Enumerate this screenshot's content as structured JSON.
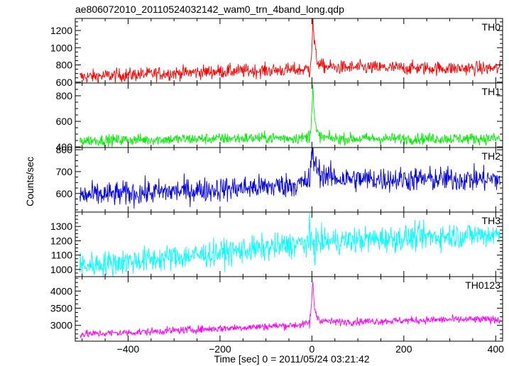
{
  "chart_data": {
    "type": "line",
    "title": "ae806072010_20110524032142_wam0_trn_4band_long.qdp",
    "xlabel": "Time [sec] 0 = 2011/05/24 03:21:42",
    "ylabel": "Counts/sec",
    "xlim": [
      -515,
      415
    ],
    "x_ticks": [
      -400,
      -200,
      0,
      200,
      400
    ],
    "x_tick_labels": [
      "−400",
      "−200",
      "0",
      "200",
      "400"
    ],
    "grid": false,
    "panels": [
      {
        "name": "TH0",
        "color": "#ff0000",
        "ylim": [
          590,
          1340
        ],
        "y_ticks": [
          600,
          800,
          1000,
          1200
        ],
        "x": [
          -505,
          -400,
          -300,
          -200,
          -100,
          -20,
          -5,
          0,
          2,
          5,
          10,
          20,
          50,
          100,
          200,
          300,
          410
        ],
        "y": [
          660,
          685,
          705,
          725,
          735,
          745,
          760,
          1000,
          1320,
          1080,
          860,
          790,
          770,
          770,
          765,
          760,
          760
        ],
        "noise": 40
      },
      {
        "name": "TH1",
        "color": "#00ee00",
        "ylim": [
          395,
          900
        ],
        "y_ticks": [
          400,
          600,
          800
        ],
        "x": [
          -505,
          -400,
          -300,
          -200,
          -100,
          -20,
          -5,
          0,
          2,
          5,
          10,
          20,
          50,
          100,
          200,
          300,
          410
        ],
        "y": [
          450,
          455,
          460,
          465,
          470,
          470,
          480,
          700,
          880,
          640,
          520,
          475,
          465,
          465,
          465,
          465,
          465
        ],
        "noise": 22
      },
      {
        "name": "TH2",
        "color": "#0000ee",
        "ylim": [
          515,
          810
        ],
        "y_ticks": [
          600,
          700,
          800
        ],
        "x": [
          -505,
          -400,
          -300,
          -200,
          -100,
          -20,
          -5,
          0,
          2,
          5,
          10,
          20,
          50,
          100,
          200,
          300,
          410
        ],
        "y": [
          590,
          600,
          610,
          620,
          630,
          645,
          660,
          740,
          800,
          760,
          715,
          690,
          670,
          665,
          665,
          665,
          665
        ],
        "noise": 28
      },
      {
        "name": "TH3",
        "color": "#00ffff",
        "ylim": [
          950,
          1400
        ],
        "y_ticks": [
          1000,
          1100,
          1200,
          1300
        ],
        "x": [
          -505,
          -400,
          -300,
          -200,
          -100,
          0,
          100,
          200,
          300,
          410
        ],
        "y": [
          1025,
          1055,
          1085,
          1115,
          1150,
          1190,
          1205,
          1220,
          1235,
          1245
        ],
        "noise": 45
      },
      {
        "name": "TH0123",
        "color": "#ff00ff",
        "ylim": [
          2540,
          4420
        ],
        "y_ticks": [
          3000,
          3500,
          4000
        ],
        "x": [
          -505,
          -400,
          -300,
          -200,
          -100,
          -20,
          -5,
          0,
          2,
          5,
          10,
          20,
          50,
          100,
          200,
          300,
          410
        ],
        "y": [
          2740,
          2790,
          2850,
          2910,
          2970,
          3020,
          3080,
          3700,
          4330,
          3600,
          3270,
          3140,
          3100,
          3110,
          3140,
          3170,
          3170
        ],
        "noise": 55
      }
    ]
  }
}
